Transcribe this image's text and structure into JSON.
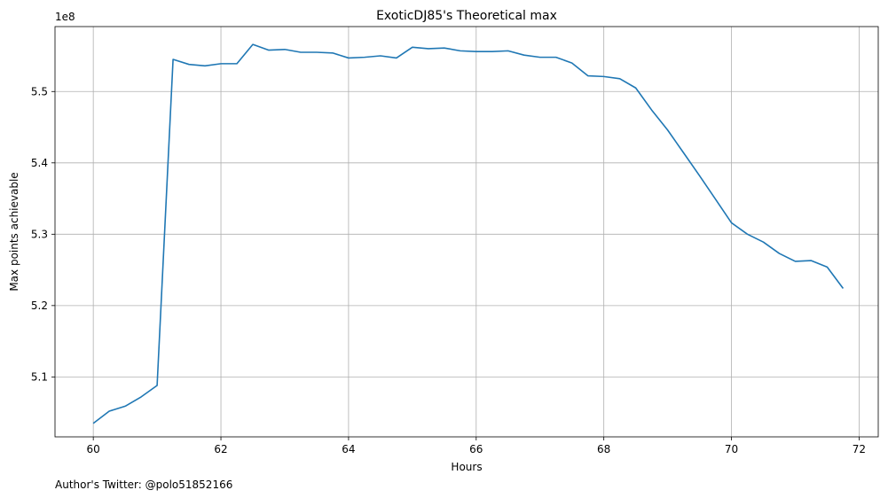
{
  "chart_data": {
    "type": "line",
    "title": "ExoticDJ85's Theoretical max",
    "xlabel": "Hours",
    "ylabel": "Max points achievable",
    "y_offset_label": "1e8",
    "y_scale_factor": 100000000,
    "footnote": "Author's Twitter: @polo51852166",
    "xlim": [
      59.4,
      72.3
    ],
    "ylim": [
      5.016,
      5.591
    ],
    "x_ticks": [
      60,
      62,
      64,
      66,
      68,
      70,
      72
    ],
    "x_tick_labels": [
      "60",
      "62",
      "64",
      "66",
      "68",
      "70",
      "72"
    ],
    "y_ticks": [
      5.1,
      5.2,
      5.3,
      5.4,
      5.5
    ],
    "y_tick_labels": [
      "5.1",
      "5.2",
      "5.3",
      "5.4",
      "5.5"
    ],
    "grid": true,
    "series": [
      {
        "color": "#1f77b4",
        "x": [
          60,
          60.25,
          60.5,
          60.75,
          61,
          61.25,
          61.5,
          61.75,
          62,
          62.25,
          62.5,
          62.75,
          63,
          63.25,
          63.5,
          63.75,
          64,
          64.25,
          64.5,
          64.75,
          65,
          65.25,
          65.5,
          65.75,
          66,
          66.25,
          66.5,
          66.75,
          67,
          67.25,
          67.5,
          67.75,
          68,
          68.25,
          68.5,
          68.75,
          69,
          69.25,
          69.5,
          69.75,
          70,
          70.25,
          70.5,
          70.75,
          71,
          71.25,
          71.5,
          71.75
        ],
        "y": [
          5.035,
          5.052,
          5.059,
          5.072,
          5.088,
          5.545,
          5.538,
          5.536,
          5.539,
          5.539,
          5.566,
          5.558,
          5.559,
          5.555,
          5.555,
          5.554,
          5.547,
          5.548,
          5.55,
          5.547,
          5.562,
          5.56,
          5.561,
          5.557,
          5.556,
          5.556,
          5.557,
          5.551,
          5.548,
          5.548,
          5.54,
          5.522,
          5.521,
          5.518,
          5.505,
          5.474,
          5.446,
          5.414,
          5.382,
          5.349,
          5.316,
          5.3,
          5.289,
          5.273,
          5.262,
          5.263,
          5.254,
          5.224
        ]
      }
    ]
  }
}
